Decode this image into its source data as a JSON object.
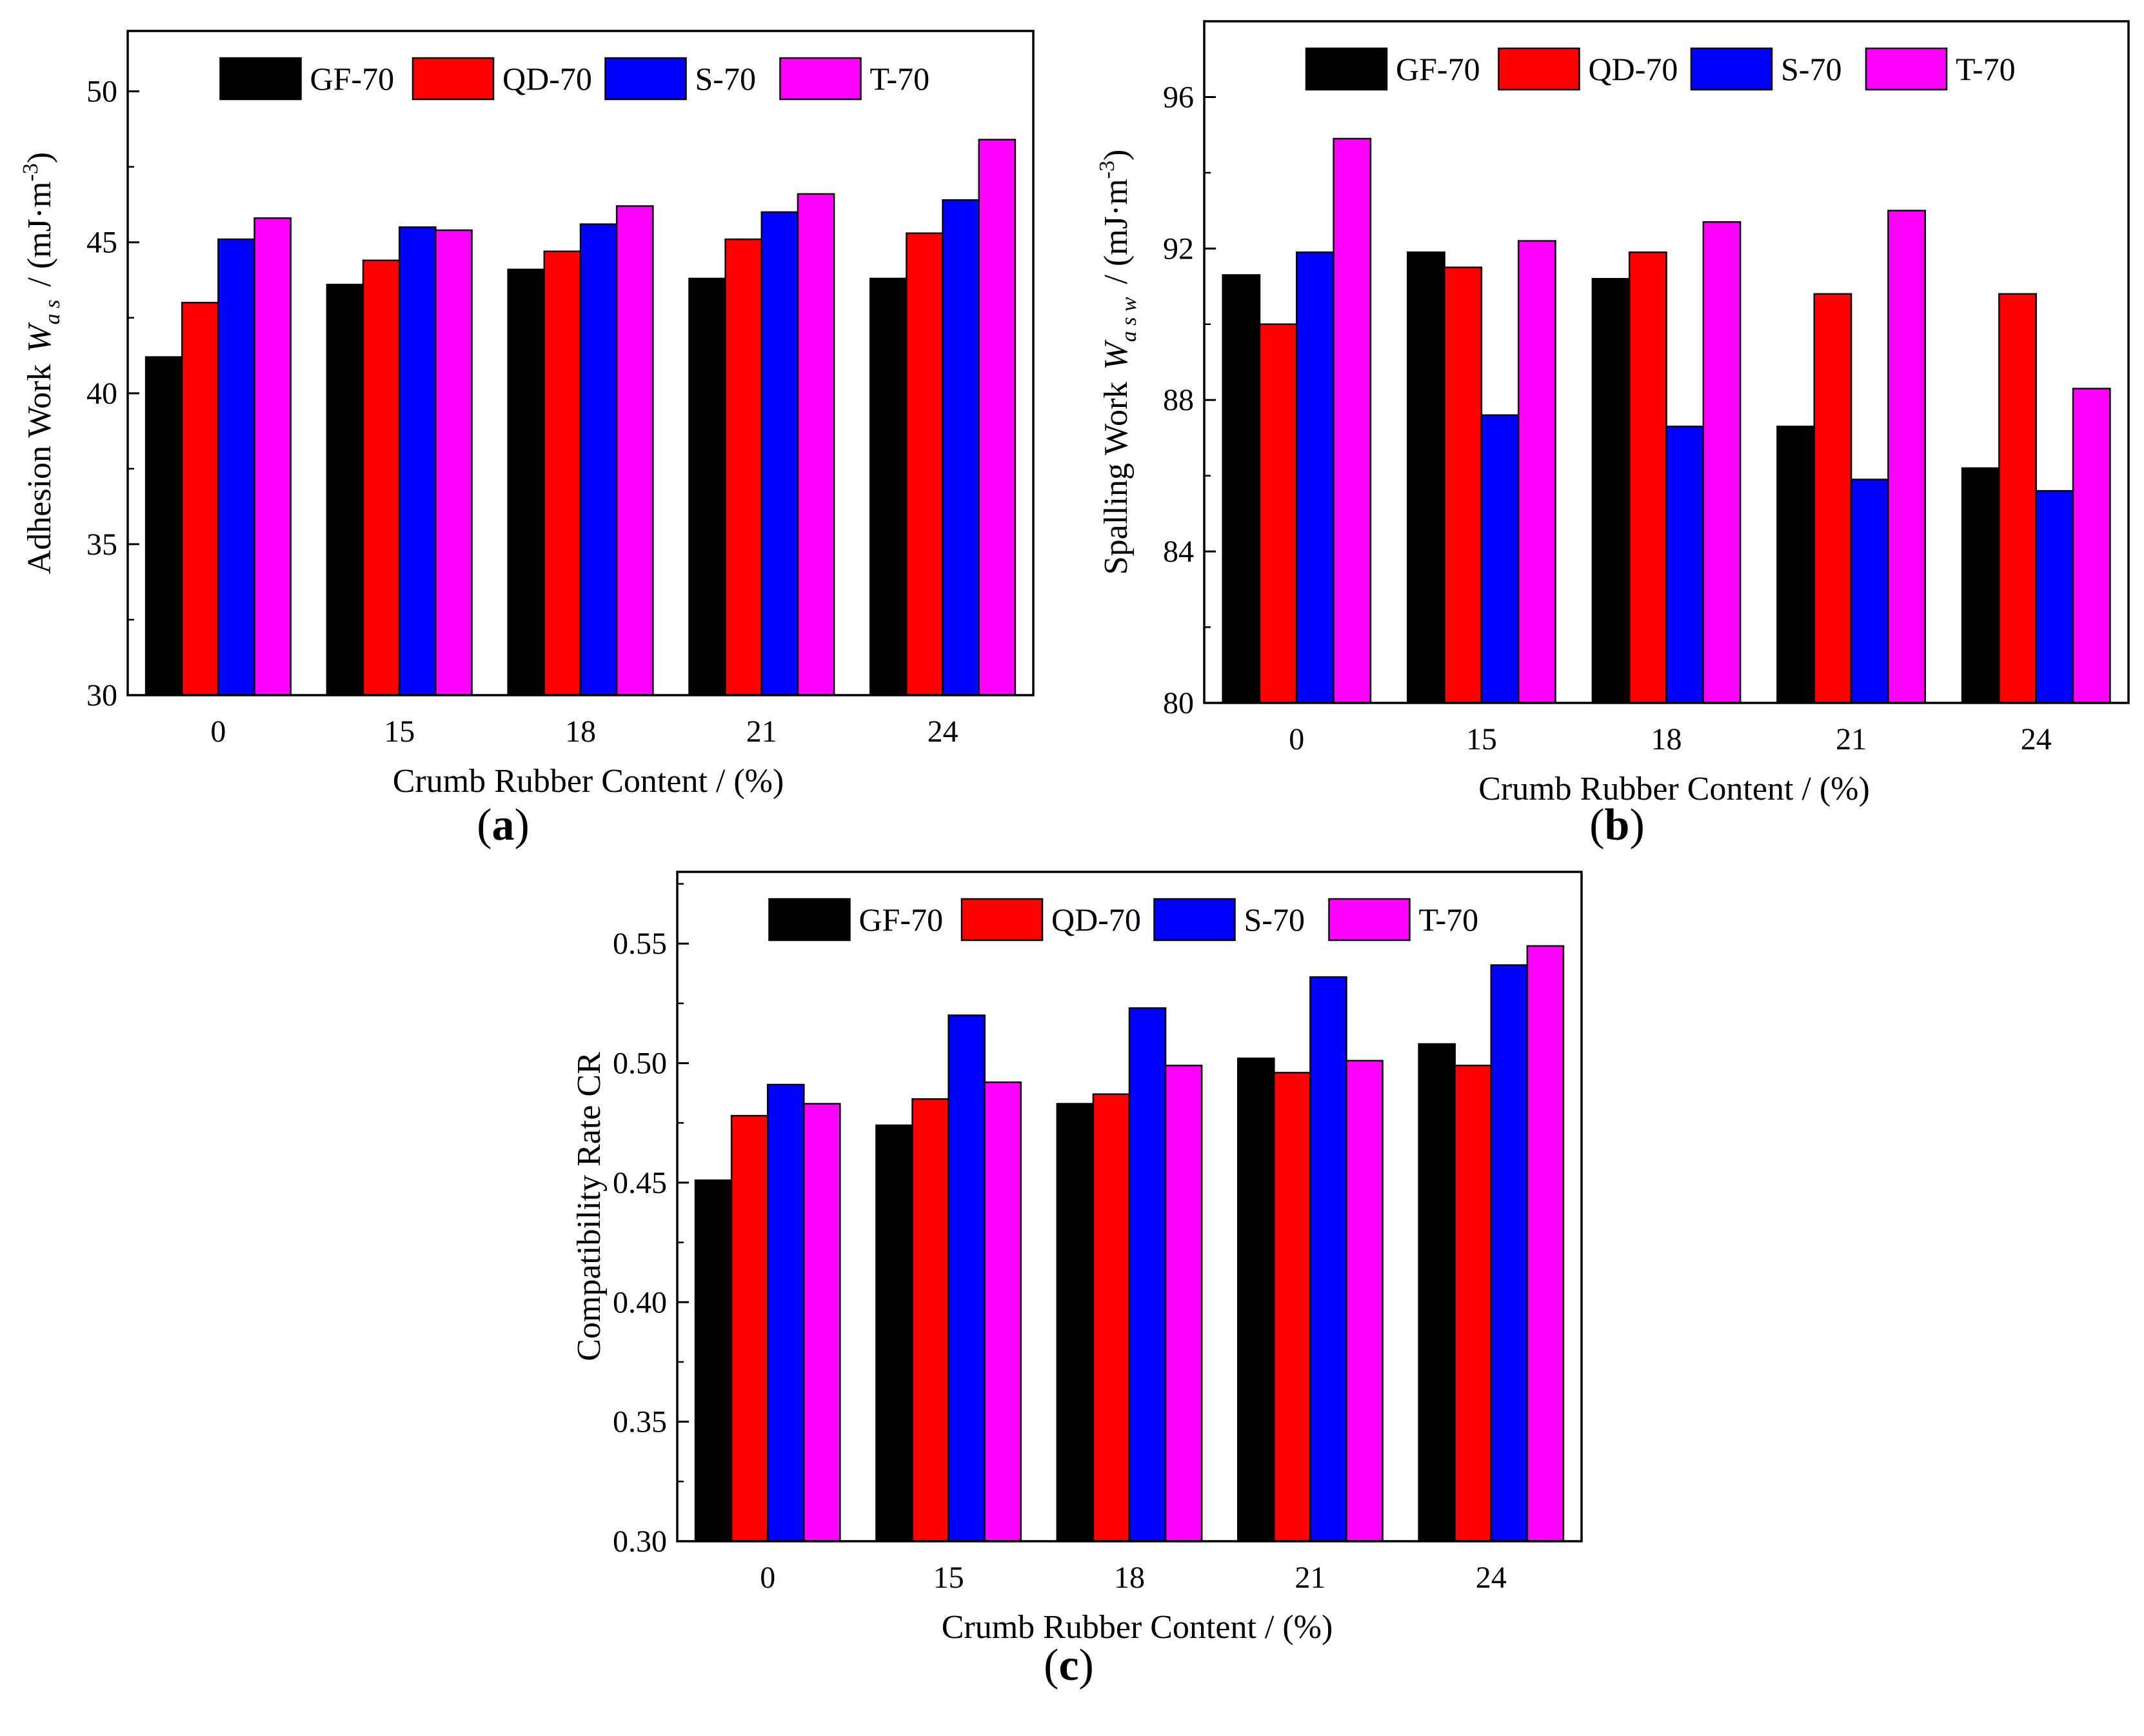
{
  "colors": {
    "GF-70": "#000000",
    "QD-70": "#ff0000",
    "S-70": "#0000ff",
    "T-70": "#ff00ff"
  },
  "chart_data": [
    {
      "id": "a",
      "panel_label": "a",
      "type": "bar",
      "xlabel": "Crumb Rubber Content / (%)",
      "ylabel_text": "Adhesion Work",
      "ylabel_symbol": "W",
      "ylabel_subscript": "a s",
      "ylabel_unit_pre": "/ (mJ·m",
      "ylabel_unit_sup": "-3",
      "ylabel_unit_post": ")",
      "categories": [
        "0",
        "15",
        "18",
        "21",
        "24"
      ],
      "ylim": [
        30,
        52
      ],
      "yticks": [
        30,
        35,
        40,
        45,
        50
      ],
      "ytick_labels": [
        "30",
        "35",
        "40",
        "45",
        "50"
      ],
      "grid": false,
      "legend_position": "top-center",
      "series": [
        {
          "name": "GF-70",
          "values": [
            41.2,
            43.6,
            44.1,
            43.8,
            43.8
          ]
        },
        {
          "name": "QD-70",
          "values": [
            43.0,
            44.4,
            44.7,
            45.1,
            45.3
          ]
        },
        {
          "name": "S-70",
          "values": [
            45.1,
            45.5,
            45.6,
            46.0,
            46.4
          ]
        },
        {
          "name": "T-70",
          "values": [
            45.8,
            45.4,
            46.2,
            46.6,
            48.4
          ]
        }
      ]
    },
    {
      "id": "b",
      "panel_label": "b",
      "type": "bar",
      "xlabel": "Crumb Rubber Content / (%)",
      "ylabel_text": "Spalling Work",
      "ylabel_symbol": "W",
      "ylabel_subscript": "a s w",
      "ylabel_unit_pre": "/ (mJ·m",
      "ylabel_unit_sup": "-3",
      "ylabel_unit_post": ")",
      "categories": [
        "0",
        "15",
        "18",
        "21",
        "24"
      ],
      "ylim": [
        80,
        98
      ],
      "yticks": [
        80,
        84,
        88,
        92,
        96
      ],
      "ytick_labels": [
        "80",
        "84",
        "88",
        "92",
        "96"
      ],
      "grid": false,
      "legend_position": "top-center",
      "series": [
        {
          "name": "GF-70",
          "values": [
            91.3,
            91.9,
            91.2,
            87.3,
            86.2
          ]
        },
        {
          "name": "QD-70",
          "values": [
            90.0,
            91.5,
            91.9,
            90.8,
            90.8
          ]
        },
        {
          "name": "S-70",
          "values": [
            91.9,
            87.6,
            87.3,
            85.9,
            85.6
          ]
        },
        {
          "name": "T-70",
          "values": [
            94.9,
            92.2,
            92.7,
            93.0,
            88.3
          ]
        }
      ]
    },
    {
      "id": "c",
      "panel_label": "c",
      "type": "bar",
      "xlabel": "Crumb Rubber Content / (%)",
      "ylabel_text": "Compatibility Rate CR",
      "ylabel_symbol": "",
      "ylabel_subscript": "",
      "ylabel_unit_pre": "",
      "ylabel_unit_sup": "",
      "ylabel_unit_post": "",
      "categories": [
        "0",
        "15",
        "18",
        "21",
        "24"
      ],
      "ylim": [
        0.3,
        0.58
      ],
      "yticks": [
        0.3,
        0.35,
        0.4,
        0.45,
        0.5,
        0.55
      ],
      "ytick_labels": [
        "0.30",
        "0.35",
        "0.40",
        "0.45",
        "0.50",
        "0.55"
      ],
      "grid": false,
      "legend_position": "top-center",
      "series": [
        {
          "name": "GF-70",
          "values": [
            0.451,
            0.474,
            0.483,
            0.502,
            0.508
          ]
        },
        {
          "name": "QD-70",
          "values": [
            0.478,
            0.485,
            0.487,
            0.496,
            0.499
          ]
        },
        {
          "name": "S-70",
          "values": [
            0.491,
            0.52,
            0.523,
            0.536,
            0.541
          ]
        },
        {
          "name": "T-70",
          "values": [
            0.483,
            0.492,
            0.499,
            0.501,
            0.549
          ]
        }
      ]
    }
  ]
}
